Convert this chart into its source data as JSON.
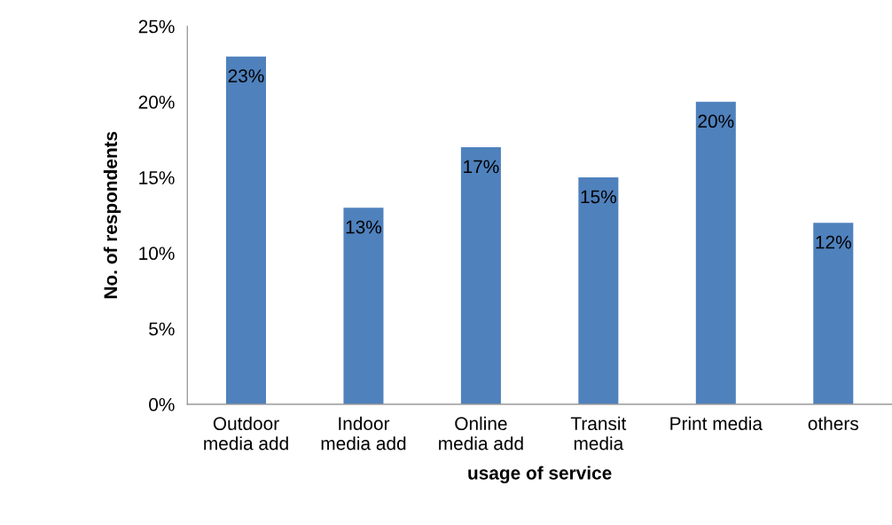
{
  "chart_data": {
    "type": "bar",
    "xlabel": "usage of service",
    "ylabel": "No. of respondents",
    "categories": [
      "Outdoor\nmedia add",
      "Indoor\nmedia add",
      "Online\nmedia add",
      "Transit\nmedia",
      "Print media",
      "others"
    ],
    "values": [
      23,
      13,
      17,
      15,
      20,
      12
    ],
    "value_labels": [
      "23%",
      "13%",
      "17%",
      "15%",
      "20%",
      "12%"
    ],
    "color": "#4f81bd",
    "ylim": [
      0,
      25
    ],
    "yticks": [
      {
        "value": 0,
        "label": "0%"
      },
      {
        "value": 5,
        "label": "5%"
      },
      {
        "value": 10,
        "label": "10%"
      },
      {
        "value": 15,
        "label": "15%"
      },
      {
        "value": 20,
        "label": "20%"
      },
      {
        "value": 25,
        "label": "25%"
      }
    ],
    "grid": false,
    "legend": false
  }
}
